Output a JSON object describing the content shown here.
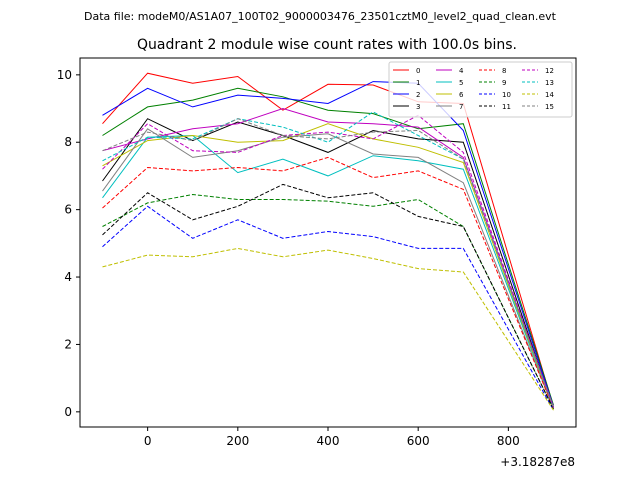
{
  "header": {
    "file_label": "Data file: modeM0/AS1A07_100T02_9000003476_23501cztM0_level2_quad_clean.evt"
  },
  "chart_data": {
    "type": "line",
    "title": "Quadrant 2 module wise count rates with 100.0s bins.",
    "xlabel": "",
    "ylabel": "",
    "x_offset_label": "+3.18287e8",
    "x": [
      -100,
      0,
      100,
      200,
      300,
      400,
      500,
      600,
      700,
      900
    ],
    "xlim": [
      -150,
      950
    ],
    "ylim": [
      -0.45,
      10.5
    ],
    "xticks": [
      0,
      200,
      400,
      600,
      800
    ],
    "yticks": [
      0,
      2,
      4,
      6,
      8,
      10
    ],
    "grid": false,
    "legend_position": "top-right",
    "series": [
      {
        "name": "0",
        "color": "#ff0000",
        "dash": "solid",
        "values": [
          8.55,
          10.05,
          9.75,
          9.95,
          8.95,
          9.72,
          9.7,
          9.2,
          9.15,
          0.15
        ]
      },
      {
        "name": "1",
        "color": "#008000",
        "dash": "solid",
        "values": [
          8.2,
          9.05,
          9.25,
          9.6,
          9.35,
          8.95,
          8.85,
          8.4,
          8.55,
          0.2
        ]
      },
      {
        "name": "2",
        "color": "#0000ff",
        "dash": "solid",
        "values": [
          8.8,
          9.6,
          9.05,
          9.4,
          9.3,
          9.15,
          9.8,
          9.75,
          8.35,
          0.15
        ]
      },
      {
        "name": "3",
        "color": "#000000",
        "dash": "solid",
        "values": [
          6.85,
          8.7,
          8.05,
          8.6,
          8.2,
          7.7,
          8.35,
          8.1,
          8.0,
          0.1
        ]
      },
      {
        "name": "4",
        "color": "#bf00bf",
        "dash": "solid",
        "values": [
          7.75,
          8.1,
          8.4,
          8.55,
          9.0,
          8.6,
          8.55,
          8.45,
          7.55,
          0.15
        ]
      },
      {
        "name": "5",
        "color": "#00bfbf",
        "dash": "solid",
        "values": [
          6.35,
          8.15,
          8.2,
          7.1,
          7.5,
          7.0,
          7.6,
          7.45,
          7.2,
          0.1
        ]
      },
      {
        "name": "6",
        "color": "#bfbf00",
        "dash": "solid",
        "values": [
          7.3,
          8.05,
          8.2,
          8.0,
          8.05,
          8.55,
          8.1,
          7.85,
          7.4,
          0.1
        ]
      },
      {
        "name": "7",
        "color": "#808080",
        "dash": "solid",
        "values": [
          6.55,
          8.4,
          7.55,
          7.75,
          8.15,
          8.25,
          7.65,
          7.55,
          6.8,
          0.1
        ]
      },
      {
        "name": "8",
        "color": "#ff0000",
        "dash": "dashed",
        "values": [
          6.05,
          7.25,
          7.15,
          7.25,
          7.15,
          7.55,
          6.95,
          7.15,
          6.6,
          0.1
        ]
      },
      {
        "name": "9",
        "color": "#008000",
        "dash": "dashed",
        "values": [
          5.5,
          6.2,
          6.45,
          6.3,
          6.3,
          6.25,
          6.1,
          6.3,
          5.5,
          0.08
        ]
      },
      {
        "name": "10",
        "color": "#0000ff",
        "dash": "dashed",
        "values": [
          4.9,
          6.1,
          5.15,
          5.7,
          5.15,
          5.35,
          5.2,
          4.85,
          4.85,
          0.05
        ]
      },
      {
        "name": "11",
        "color": "#000000",
        "dash": "dashed",
        "values": [
          5.25,
          6.5,
          5.7,
          6.1,
          6.75,
          6.35,
          6.5,
          5.8,
          5.5,
          0.08
        ]
      },
      {
        "name": "12",
        "color": "#bf00bf",
        "dash": "dashed",
        "values": [
          7.2,
          8.55,
          7.75,
          7.7,
          8.2,
          8.3,
          8.1,
          8.8,
          7.7,
          0.12
        ]
      },
      {
        "name": "13",
        "color": "#00bfbf",
        "dash": "dashed",
        "values": [
          7.45,
          8.15,
          8.1,
          8.7,
          8.45,
          8.0,
          8.9,
          8.2,
          7.5,
          0.12
        ]
      },
      {
        "name": "14",
        "color": "#bfbf00",
        "dash": "dashed",
        "values": [
          4.3,
          4.65,
          4.6,
          4.85,
          4.6,
          4.8,
          4.55,
          4.25,
          4.15,
          0.05
        ]
      },
      {
        "name": "15",
        "color": "#808080",
        "dash": "dashed",
        "values": [
          7.75,
          8.3,
          8.05,
          8.7,
          8.2,
          8.1,
          8.3,
          8.35,
          7.5,
          0.12
        ]
      }
    ]
  }
}
